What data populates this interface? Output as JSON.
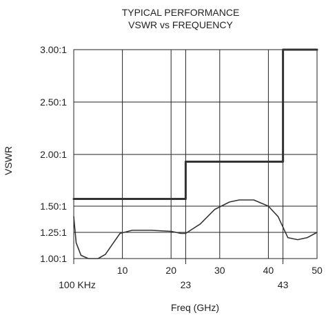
{
  "chart_data": {
    "type": "line",
    "title": "TYPICAL PERFORMANCE",
    "subtitle": "VSWR vs FREQUENCY",
    "xlabel": "Freq (GHz)",
    "ylabel": "VSWR",
    "xlim": [
      0,
      50
    ],
    "ylim": [
      1.0,
      3.0
    ],
    "x_ticks": [
      {
        "value": 0,
        "label": "100 KHz",
        "row": "lower"
      },
      {
        "value": 10,
        "label": "10",
        "row": "upper"
      },
      {
        "value": 20,
        "label": "20",
        "row": "upper"
      },
      {
        "value": 23,
        "label": "23",
        "row": "lower"
      },
      {
        "value": 30,
        "label": "30",
        "row": "upper"
      },
      {
        "value": 40,
        "label": "40",
        "row": "upper"
      },
      {
        "value": 43,
        "label": "43",
        "row": "lower"
      },
      {
        "value": 50,
        "label": "50",
        "row": "upper"
      }
    ],
    "y_ticks": [
      {
        "value": 1.0,
        "label": "1.00:1"
      },
      {
        "value": 1.25,
        "label": "1.25:1"
      },
      {
        "value": 1.5,
        "label": "1.50:1"
      },
      {
        "value": 2.0,
        "label": "2.00:1"
      },
      {
        "value": 2.5,
        "label": "2.50:1"
      },
      {
        "value": 3.0,
        "label": "3.00:1"
      }
    ],
    "grid": true,
    "series": [
      {
        "role": "spec-limit",
        "style": "step",
        "color": "#333333",
        "x": [
          0,
          23,
          23,
          43,
          43,
          50
        ],
        "y": [
          1.57,
          1.57,
          1.93,
          1.93,
          3.0,
          3.0
        ]
      },
      {
        "role": "typical",
        "style": "line",
        "color": "#333333",
        "x": [
          0,
          0.5,
          1.5,
          3,
          5,
          6.5,
          8,
          9.5,
          12,
          16,
          20,
          22,
          23,
          26,
          29,
          32,
          34,
          37,
          38,
          40,
          42,
          44,
          46,
          48,
          50
        ],
        "y": [
          1.4,
          1.15,
          1.03,
          1.0,
          1.0,
          1.04,
          1.14,
          1.24,
          1.27,
          1.27,
          1.26,
          1.24,
          1.24,
          1.33,
          1.47,
          1.54,
          1.56,
          1.56,
          1.54,
          1.5,
          1.4,
          1.2,
          1.18,
          1.2,
          1.25
        ]
      }
    ]
  }
}
